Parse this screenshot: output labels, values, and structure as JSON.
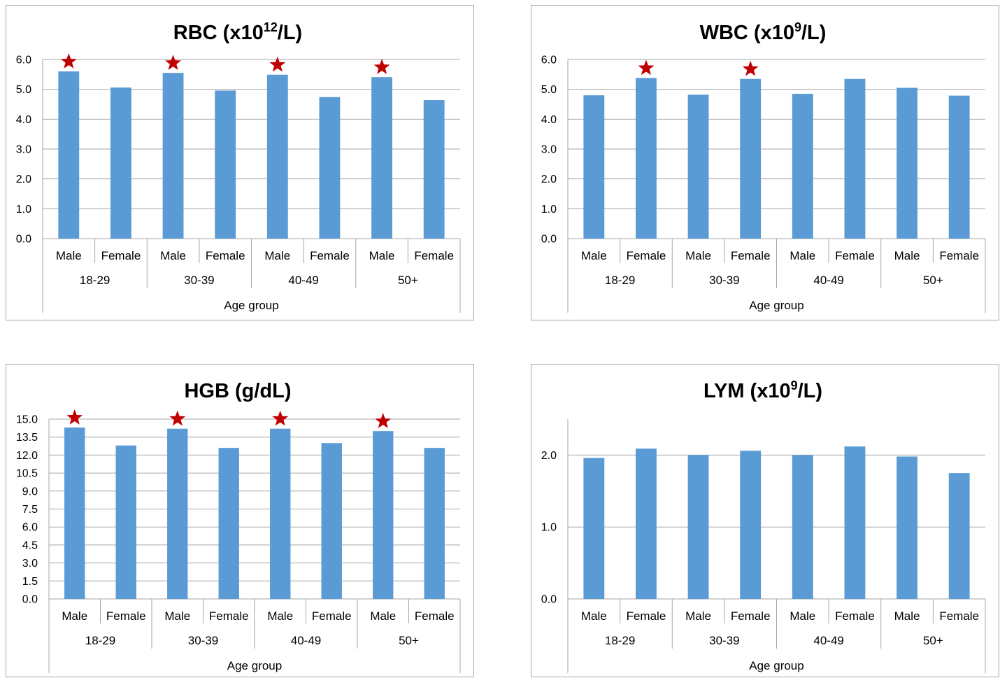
{
  "chart_data": [
    {
      "type": "bar",
      "title_main": "RBC (x10",
      "title_sup": "12",
      "title_end": "/L)",
      "xlabel": "Age group",
      "ylabel": "",
      "groups": [
        "18-29",
        "30-39",
        "40-49",
        "50+"
      ],
      "categories": [
        "Male",
        "Female",
        "Male",
        "Female",
        "Male",
        "Female",
        "Male",
        "Female"
      ],
      "values": [
        5.6,
        5.06,
        5.55,
        4.96,
        5.49,
        4.74,
        5.41,
        4.64
      ],
      "significant": [
        true,
        false,
        true,
        false,
        true,
        false,
        true,
        false
      ],
      "yticks": [
        "0.0",
        "1.0",
        "2.0",
        "3.0",
        "4.0",
        "5.0",
        "6.0"
      ],
      "ylim": [
        0,
        6
      ],
      "bar_color": "#5b9bd5",
      "marker_color": "#c00000",
      "grid": true
    },
    {
      "type": "bar",
      "title_main": "WBC (x10",
      "title_sup": "9",
      "title_end": "/L)",
      "xlabel": "Age group",
      "ylabel": "",
      "groups": [
        "18-29",
        "30-39",
        "40-49",
        "50+"
      ],
      "categories": [
        "Male",
        "Female",
        "Male",
        "Female",
        "Male",
        "Female",
        "Male",
        "Female"
      ],
      "values": [
        4.8,
        5.38,
        4.82,
        5.35,
        4.85,
        5.35,
        5.05,
        4.79
      ],
      "significant": [
        false,
        true,
        false,
        true,
        false,
        false,
        false,
        false
      ],
      "yticks": [
        "0.0",
        "1.0",
        "2.0",
        "3.0",
        "4.0",
        "5.0",
        "6.0"
      ],
      "ylim": [
        0,
        6
      ],
      "bar_color": "#5b9bd5",
      "marker_color": "#c00000",
      "grid": true
    },
    {
      "type": "bar",
      "title_main": "HGB (g/dL)",
      "title_sup": "",
      "title_end": "",
      "xlabel": "Age group",
      "ylabel": "",
      "groups": [
        "18-29",
        "30-39",
        "40-49",
        "50+"
      ],
      "categories": [
        "Male",
        "Female",
        "Male",
        "Female",
        "Male",
        "Female",
        "Male",
        "Female"
      ],
      "values": [
        14.3,
        12.8,
        14.2,
        12.6,
        14.2,
        13.0,
        14.0,
        12.6
      ],
      "significant": [
        true,
        false,
        true,
        false,
        true,
        false,
        true,
        false
      ],
      "yticks": [
        "0.0",
        "1.5",
        "3.0",
        "4.5",
        "6.0",
        "7.5",
        "9.0",
        "10.5",
        "12.0",
        "13.5",
        "15.0"
      ],
      "ylim": [
        0,
        15
      ],
      "bar_color": "#5b9bd5",
      "marker_color": "#c00000",
      "grid": true
    },
    {
      "type": "bar",
      "title_main": "LYM (x10",
      "title_sup": "9",
      "title_end": "/L)",
      "xlabel": "Age group",
      "ylabel": "",
      "groups": [
        "18-29",
        "30-39",
        "40-49",
        "50+"
      ],
      "categories": [
        "Male",
        "Female",
        "Male",
        "Female",
        "Male",
        "Female",
        "Male",
        "Female"
      ],
      "values": [
        1.96,
        2.09,
        2.0,
        2.06,
        2.0,
        2.12,
        1.98,
        1.75
      ],
      "significant": [
        false,
        false,
        false,
        false,
        false,
        false,
        false,
        false
      ],
      "yticks": [
        "0.0",
        "1.0",
        "2.0"
      ],
      "ylim": [
        0,
        2.5
      ],
      "bar_color": "#5b9bd5",
      "marker_color": "#c00000",
      "grid": true
    }
  ]
}
